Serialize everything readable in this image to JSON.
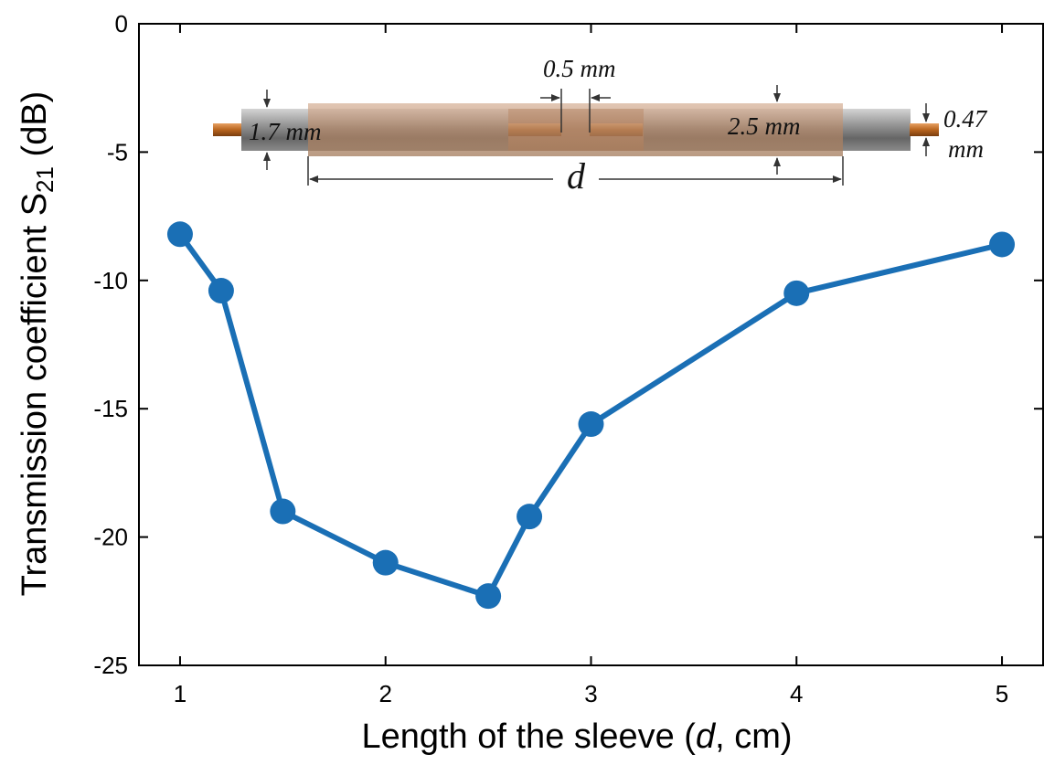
{
  "chart_data": {
    "type": "line",
    "xlabel_prefix": "Length of the sleeve (",
    "xlabel_var": "d",
    "xlabel_suffix": ", cm)",
    "ylabel_main": "Transmission coefficient S",
    "ylabel_sub": "21",
    "ylabel_unit": " (dB)",
    "xlim": [
      0.8,
      5.2
    ],
    "ylim": [
      -25,
      0
    ],
    "xticks": [
      1,
      2,
      3,
      4,
      5
    ],
    "yticks": [
      0,
      -5,
      -10,
      -15,
      -20,
      -25
    ],
    "grid": false,
    "line_color": "#1a6fb5",
    "x": [
      1,
      1.2,
      1.5,
      2,
      2.5,
      2.7,
      3,
      4,
      5
    ],
    "y": [
      -8.2,
      -10.4,
      -19.0,
      -21.0,
      -22.3,
      -19.2,
      -15.6,
      -10.5,
      -8.6
    ]
  },
  "inset": {
    "label_outer_diameter": "1.7 mm",
    "label_gap": "0.5 mm",
    "label_sleeve_diameter": "2.5 mm",
    "label_core_diameter_1": "0.47",
    "label_core_diameter_2": "mm",
    "label_length": "d"
  }
}
